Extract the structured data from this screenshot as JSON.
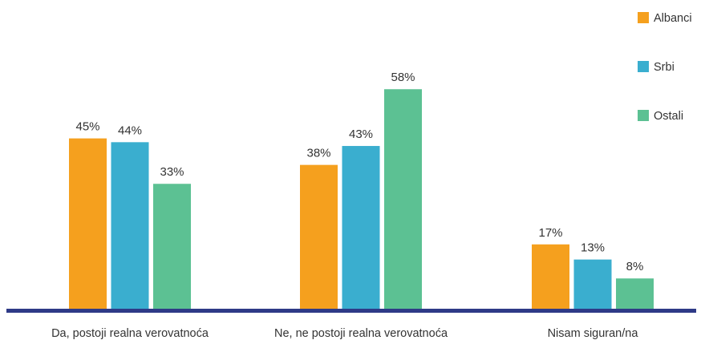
{
  "chart_data": {
    "type": "bar",
    "title": "",
    "xlabel": "",
    "ylabel": "",
    "ylim": [
      0,
      65
    ],
    "grid": false,
    "legend_position": "top-right",
    "categories": [
      "Da, postoji realna verovatnoća",
      "Ne, ne postoji realna verovatnoća",
      "Nisam siguran/na"
    ],
    "series": [
      {
        "name": "Albanci",
        "values": [
          45,
          38,
          17
        ],
        "labels": [
          "45%",
          "38%",
          "17%"
        ],
        "color": "#F5A01E"
      },
      {
        "name": "Srbi",
        "values": [
          44,
          43,
          13
        ],
        "labels": [
          "44%",
          "43%",
          "13%"
        ],
        "color": "#3AAECF"
      },
      {
        "name": "Ostali",
        "values": [
          33,
          58,
          8
        ],
        "labels": [
          "33%",
          "58%",
          "8%"
        ],
        "color": "#5CC193"
      }
    ],
    "axis_color": "#2E3A87"
  }
}
